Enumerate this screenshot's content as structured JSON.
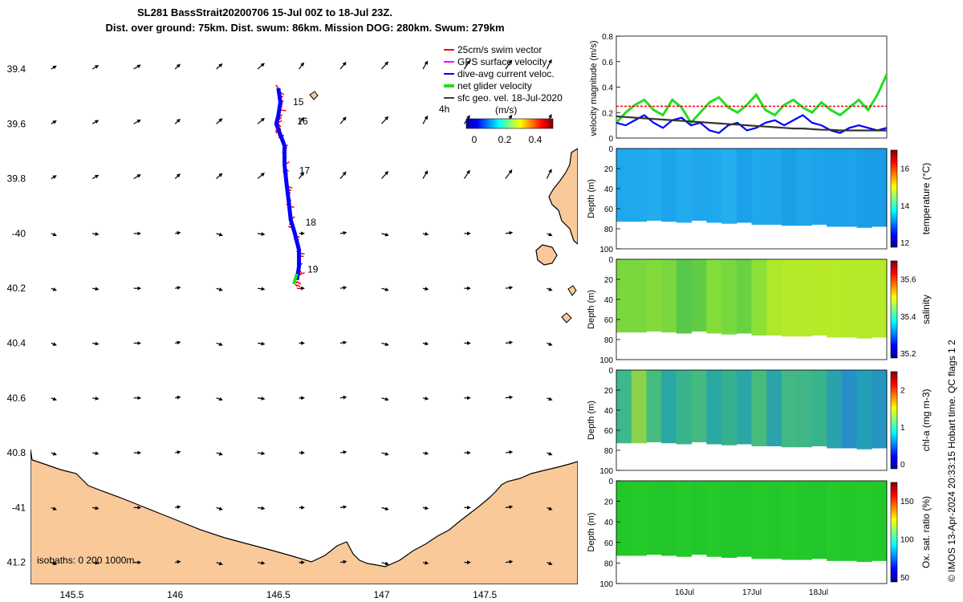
{
  "title": {
    "line1": "SL281 BassStrait20200706 15-Jul 00Z to 18-Jul 23Z.",
    "line2": "Dist. over ground: 75km. Dist. swum: 86km. Mission DOG: 280km. Swum: 279km"
  },
  "copyright": "© IMOS 13-Apr-2024 20:33:15 Hobart time. QC flags 1  2",
  "colors": {
    "land": "#f9c99a",
    "glider_track": "#0000ff",
    "swim_vector": "#ff0000",
    "gps_velocity": "#ff00ff",
    "net_velocity": "#22dd22",
    "white": "#ffffff"
  },
  "chart_data": [
    {
      "type": "map",
      "name": "track-map",
      "xlim": [
        145.3,
        147.95
      ],
      "ylim": [
        41.28,
        39.28
      ],
      "xticks": [
        145.5,
        146,
        146.5,
        147,
        147.5
      ],
      "xtick_labels": [
        "145.5",
        "146",
        "146.5",
        "147",
        "147.5"
      ],
      "yticks": [
        39.4,
        39.6,
        39.8,
        40,
        40.2,
        40.4,
        40.6,
        40.8,
        41,
        41.2
      ],
      "ytick_labels": [
        "39.4",
        "39.6",
        "39.8",
        "-40",
        "40.2",
        "40.4",
        "40.6",
        "40.8",
        "-41",
        "41.2"
      ],
      "isobaths_label": "isobaths: 0   200  1000m",
      "legend": [
        {
          "label": "25cm/s swim vector",
          "color": "#ff0000"
        },
        {
          "label": "GPS surface velocity",
          "color": "#ff00ff"
        },
        {
          "label": "dive-avg current veloc.",
          "color": "#0000ff"
        },
        {
          "label": "net glider velocity",
          "color": "#22dd22"
        },
        {
          "label": "sfc geo. vel. 18-Jul-2020",
          "color": "#000000"
        }
      ],
      "scale_label": "4h",
      "colorbar_unit": "(m/s)",
      "colorbar_ticks": [
        "0",
        "0.2",
        "0.4"
      ],
      "day_labels": [
        {
          "text": "15",
          "lon": 146.54,
          "lat": 39.52
        },
        {
          "text": "16",
          "lon": 146.56,
          "lat": 39.59
        },
        {
          "text": "17",
          "lon": 146.57,
          "lat": 39.77
        },
        {
          "text": "18",
          "lon": 146.6,
          "lat": 39.96
        },
        {
          "text": "19",
          "lon": 146.61,
          "lat": 40.13
        }
      ],
      "track": [
        [
          146.5,
          39.47
        ],
        [
          146.51,
          39.52
        ],
        [
          146.5,
          39.57
        ],
        [
          146.49,
          39.6
        ],
        [
          146.5,
          39.62
        ],
        [
          146.53,
          39.68
        ],
        [
          146.53,
          39.75
        ],
        [
          146.54,
          39.82
        ],
        [
          146.55,
          39.88
        ],
        [
          146.56,
          39.95
        ],
        [
          146.58,
          40.0
        ],
        [
          146.6,
          40.06
        ],
        [
          146.6,
          40.12
        ],
        [
          146.59,
          40.17
        ]
      ],
      "vector_grid": {
        "lons": [
          145.4,
          145.6,
          145.8,
          146.0,
          146.2,
          146.4,
          146.6,
          146.8,
          147.0,
          147.2,
          147.4,
          147.6,
          147.8
        ],
        "lats": [
          39.4,
          39.6,
          39.8,
          40.0,
          40.2,
          40.4,
          40.6,
          40.8,
          41.0,
          41.2
        ]
      }
    },
    {
      "type": "line",
      "name": "velocity-magnitude",
      "ylabel": "velocity magnitude (m/s)",
      "ylim": [
        0,
        0.8
      ],
      "yticks": [
        0,
        0.2,
        0.4,
        0.6,
        0.8
      ],
      "series": [
        {
          "color": "#22dd22",
          "values": [
            0.12,
            0.2,
            0.26,
            0.3,
            0.22,
            0.18,
            0.3,
            0.24,
            0.12,
            0.2,
            0.28,
            0.32,
            0.24,
            0.2,
            0.26,
            0.34,
            0.22,
            0.18,
            0.26,
            0.3,
            0.24,
            0.2,
            0.28,
            0.22,
            0.18,
            0.24,
            0.3,
            0.22,
            0.34,
            0.5
          ]
        },
        {
          "color": "#0000ff",
          "values": [
            0.12,
            0.1,
            0.14,
            0.18,
            0.12,
            0.08,
            0.14,
            0.16,
            0.1,
            0.12,
            0.06,
            0.04,
            0.1,
            0.12,
            0.06,
            0.08,
            0.12,
            0.14,
            0.1,
            0.14,
            0.18,
            0.12,
            0.1,
            0.06,
            0.04,
            0.08,
            0.1,
            0.08,
            0.06,
            0.08
          ]
        },
        {
          "color": "#333333",
          "values": [
            0.17,
            0.165,
            0.16,
            0.155,
            0.15,
            0.145,
            0.14,
            0.135,
            0.13,
            0.125,
            0.12,
            0.115,
            0.11,
            0.105,
            0.1,
            0.095,
            0.09,
            0.085,
            0.08,
            0.075,
            0.075,
            0.07,
            0.065,
            0.065,
            0.06,
            0.06,
            0.06,
            0.06,
            0.06,
            0.06
          ]
        },
        {
          "color": "#ff0000",
          "dashed": true,
          "values": [
            0.25,
            0.25,
            0.25,
            0.25,
            0.25,
            0.25,
            0.25,
            0.25,
            0.25,
            0.25,
            0.25,
            0.25,
            0.25,
            0.25,
            0.25,
            0.25,
            0.25,
            0.25,
            0.25,
            0.25,
            0.25,
            0.25,
            0.25,
            0.25,
            0.25,
            0.25,
            0.25,
            0.25,
            0.25,
            0.25
          ]
        }
      ]
    },
    {
      "type": "heatmap",
      "name": "temperature",
      "ylabel": "Depth (m)",
      "clabel": "temperature (°C)",
      "ylim": [
        100,
        0
      ],
      "yticks": [
        0,
        20,
        40,
        60,
        80,
        100
      ],
      "ctick_labels": [
        "16",
        "14",
        "12"
      ],
      "column_colors": [
        "#1fa8ee",
        "#1fa8ee",
        "#22acef",
        "#1da4ec",
        "#22acef",
        "#1fa6ed",
        "#1fa8ee",
        "#24adef",
        "#1ba2ea",
        "#1fa8ee",
        "#1fa6ed",
        "#1ba0e8",
        "#1ea5ec",
        "#1da3eb",
        "#1ca2ea",
        "#1da3eb",
        "#1a9ee7",
        "#1a9de6"
      ],
      "seafloor_depth": [
        73,
        73,
        72,
        73,
        74,
        72,
        74,
        75,
        74,
        76,
        76,
        77,
        77,
        76,
        78,
        78,
        79,
        78
      ]
    },
    {
      "type": "heatmap",
      "name": "salinity",
      "ylabel": "Depth (m)",
      "clabel": "salinity",
      "ylim": [
        100,
        0
      ],
      "yticks": [
        0,
        20,
        40,
        60,
        80,
        100
      ],
      "ctick_labels": [
        "35.6",
        "35.4",
        "35.2"
      ],
      "column_colors": [
        "#7ad83e",
        "#7ad83e",
        "#82db3a",
        "#7ad83e",
        "#56c84a",
        "#60cc46",
        "#84dc38",
        "#78d840",
        "#6ad242",
        "#8ae036",
        "#aee82a",
        "#b4ea28",
        "#b4ea28",
        "#b6ea28",
        "#b8eb27",
        "#b4ea28",
        "#b6ea28",
        "#b4ea28"
      ],
      "seafloor_depth": [
        73,
        73,
        72,
        73,
        74,
        72,
        74,
        75,
        74,
        76,
        76,
        77,
        77,
        76,
        78,
        78,
        79,
        78
      ]
    },
    {
      "type": "heatmap",
      "name": "chlorophyll",
      "ylabel": "Depth (m)",
      "clabel": "chl-a (mg m-3)",
      "ylim": [
        100,
        0
      ],
      "yticks": [
        0,
        20,
        40,
        60,
        80,
        100
      ],
      "ctick_labels": [
        "2",
        "1",
        "0"
      ],
      "column_colors": [
        "#3cb88a",
        "#8ad24a",
        "#46bc7e",
        "#2aa8a4",
        "#38b48c",
        "#44ba80",
        "#2aa8a4",
        "#36b08e",
        "#2aa6a6",
        "#48bc7c",
        "#2aa4aa",
        "#44b884",
        "#40b688",
        "#38b48c",
        "#2aa2ae",
        "#2690c6",
        "#22a0b8",
        "#2694c0"
      ],
      "seafloor_depth": [
        73,
        73,
        72,
        73,
        74,
        72,
        74,
        75,
        74,
        76,
        76,
        77,
        77,
        76,
        78,
        78,
        79,
        78
      ]
    },
    {
      "type": "heatmap",
      "name": "oxygen-saturation",
      "ylabel": "Depth (m)",
      "clabel": "Ox. sat. ratio (%)",
      "ylim": [
        100,
        0
      ],
      "yticks": [
        0,
        20,
        40,
        60,
        80,
        100
      ],
      "ctick_labels": [
        "150",
        "100",
        "50"
      ],
      "column_colors": [
        "#22c82a",
        "#24ca2a",
        "#22c82a",
        "#22c62a",
        "#24ca2a",
        "#22c82a",
        "#24ca2a",
        "#22c82a",
        "#22c62a",
        "#24ca2a",
        "#22c82a",
        "#24ca2a",
        "#22c82a",
        "#22c62a",
        "#24ca2a",
        "#22c82a",
        "#24ca2a",
        "#22c82a"
      ],
      "seafloor_depth": [
        73,
        73,
        72,
        73,
        74,
        72,
        74,
        75,
        74,
        76,
        76,
        77,
        77,
        76,
        78,
        78,
        79,
        78
      ]
    }
  ],
  "time_axis": {
    "tick_labels": [
      "16Jul",
      "17Jul",
      "18Jul"
    ]
  }
}
